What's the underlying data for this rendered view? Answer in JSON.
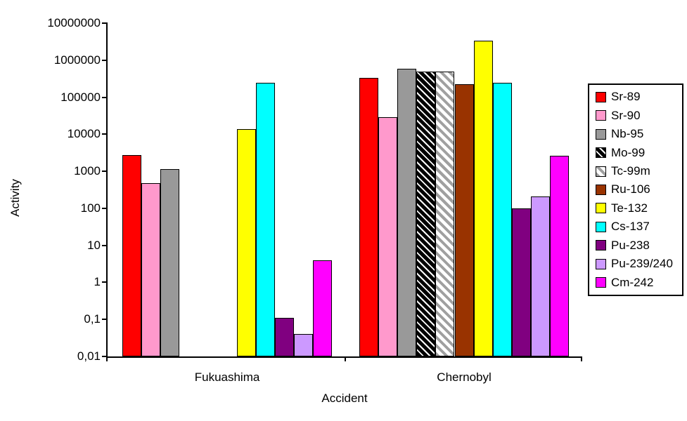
{
  "chart_data": {
    "type": "bar",
    "scale": "log",
    "title": "",
    "xlabel": "Accident",
    "ylabel": "Activity",
    "ylim": [
      0.01,
      10000000
    ],
    "ytick_labels": [
      "10000000",
      "1000000",
      "100000",
      "10000",
      "1000",
      "100",
      "10",
      "1",
      "0,1",
      "0,01"
    ],
    "grid": false,
    "legend_position": "right",
    "categories": [
      "Fukuashima",
      "Chernobyl"
    ],
    "series": [
      {
        "name": "Sr-89",
        "color": "#FF0000",
        "hatch": null,
        "values": [
          2800,
          330000
        ]
      },
      {
        "name": "Sr-90",
        "color": "#FF99CC",
        "hatch": null,
        "values": [
          480,
          29000
        ]
      },
      {
        "name": "Nb-95",
        "color": "#999999",
        "hatch": null,
        "values": [
          1150,
          580000
        ]
      },
      {
        "name": "Mo-99",
        "color": "#000000",
        "hatch": "white-stripes-on-black",
        "values": [
          null,
          500000
        ]
      },
      {
        "name": "Tc-99m",
        "color": "#FFFFFF",
        "hatch": "gray-stripes-on-white",
        "values": [
          null,
          490000
        ]
      },
      {
        "name": "Ru-106",
        "color": "#993300",
        "hatch": null,
        "values": [
          null,
          220000
        ]
      },
      {
        "name": "Te-132",
        "color": "#FFFF00",
        "hatch": null,
        "values": [
          14000,
          3400000
        ]
      },
      {
        "name": "Cs-137",
        "color": "#00FFFF",
        "hatch": null,
        "values": [
          250000,
          250000
        ]
      },
      {
        "name": "Pu-238",
        "color": "#800080",
        "hatch": null,
        "values": [
          0.11,
          100
        ]
      },
      {
        "name": "Pu-239/240",
        "color": "#CC99FF",
        "hatch": null,
        "values": [
          0.04,
          210
        ]
      },
      {
        "name": "Cm-242",
        "color": "#FF00FF",
        "hatch": null,
        "values": [
          4,
          2600
        ]
      }
    ]
  }
}
